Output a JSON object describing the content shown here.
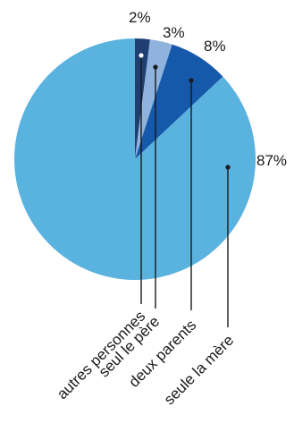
{
  "chart_data": {
    "type": "pie",
    "title": "",
    "start_angle_deg": 0,
    "direction": "clockwise",
    "categories": [
      "autres personnes",
      "seul le père",
      "deux parents",
      "seule la mère"
    ],
    "values": [
      2,
      3,
      8,
      87
    ],
    "value_labels": [
      "2%",
      "3%",
      "8%",
      "87%"
    ],
    "colors": [
      "#1f3f73",
      "#8fb3dd",
      "#1659aa",
      "#5ab2df"
    ],
    "dot_colors": [
      "#ffffff",
      "#1a1a1a",
      "#1a1a1a",
      "#1a1a1a"
    ],
    "line_color": "#1a1a1a",
    "label_rotation_deg": -45
  }
}
